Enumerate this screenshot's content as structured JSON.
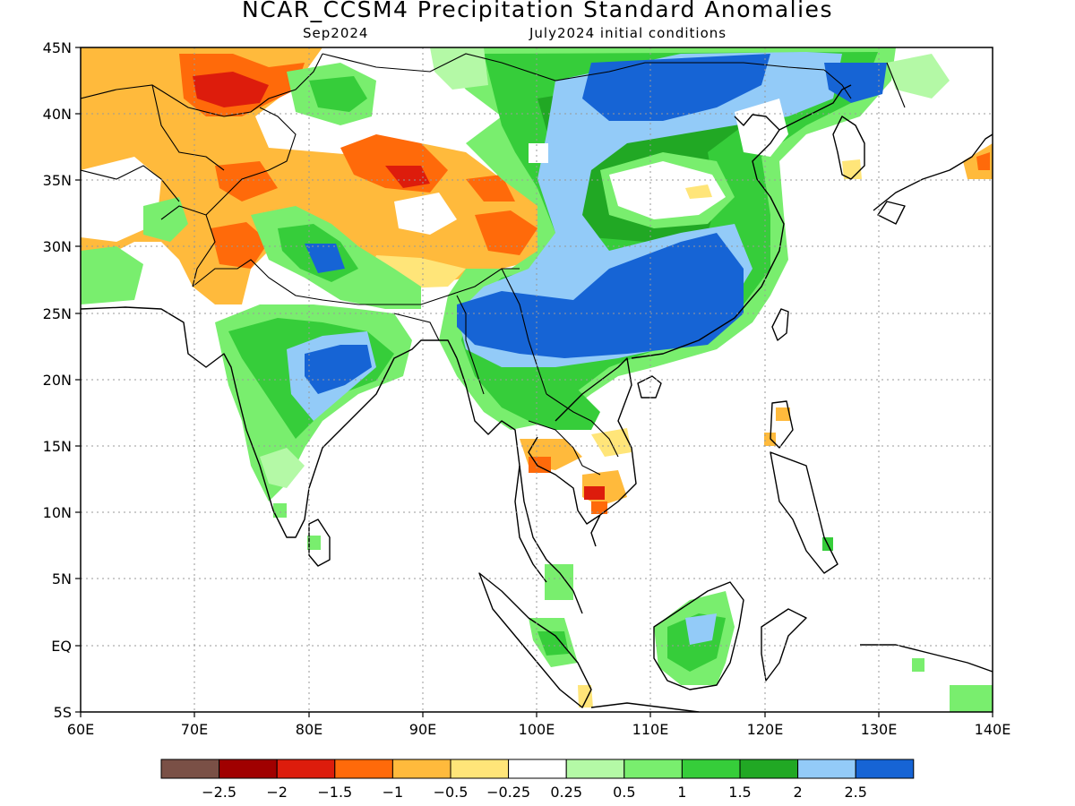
{
  "title": "NCAR_CCSM4 Precipitation Standard Anomalies",
  "subtitle_left": "Sep2024",
  "subtitle_right": "July2024 initial conditions",
  "lat_labels": [
    "45N",
    "40N",
    "35N",
    "30N",
    "25N",
    "20N",
    "15N",
    "10N",
    "5N",
    "EQ",
    "5S"
  ],
  "lon_labels": [
    "60E",
    "70E",
    "80E",
    "90E",
    "100E",
    "110E",
    "120E",
    "130E",
    "140E"
  ],
  "colorbar": {
    "colors": [
      "#7a5046",
      "#a00000",
      "#dd1c0c",
      "#ff6a0a",
      "#ffba3c",
      "#ffe579",
      "#ffffff",
      "#b4f9a6",
      "#79ee6e",
      "#36cd3a",
      "#21a824",
      "#93cbf8",
      "#1664d5"
    ],
    "labels": [
      "−2.5",
      "−2",
      "−1.5",
      "−1",
      "−0.5",
      "−0.25",
      "0.25",
      "0.5",
      "1",
      "1.5",
      "2",
      "2.5"
    ]
  }
}
